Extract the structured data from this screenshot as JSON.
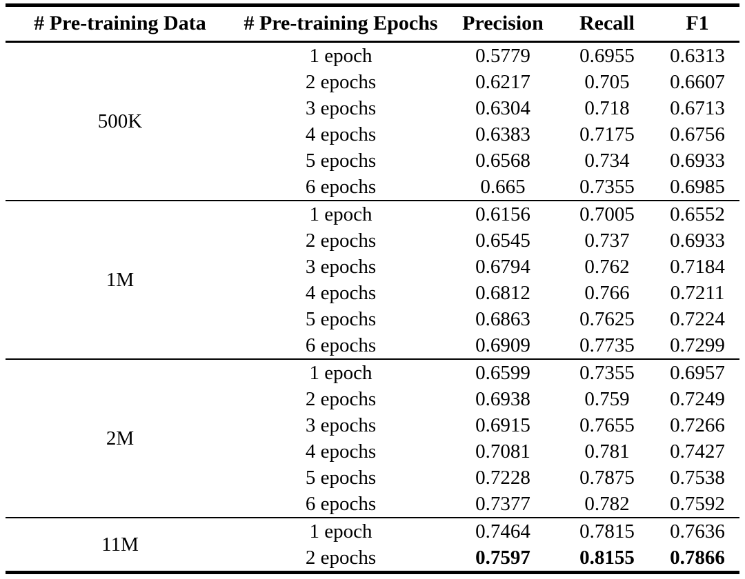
{
  "page": {
    "background": "#ffffff",
    "text_color": "#000000",
    "rule_color": "#000000"
  },
  "table": {
    "columns": [
      "# Pre-training Data",
      "# Pre-training Epochs",
      "Precision",
      "Recall",
      "F1"
    ],
    "groups": [
      {
        "data": "500K",
        "rows": [
          {
            "epochs": "1 epoch",
            "precision": "0.5779",
            "recall": "0.6955",
            "f1": "0.6313",
            "bold": false
          },
          {
            "epochs": "2 epochs",
            "precision": "0.6217",
            "recall": "0.705",
            "f1": "0.6607",
            "bold": false
          },
          {
            "epochs": "3 epochs",
            "precision": "0.6304",
            "recall": "0.718",
            "f1": "0.6713",
            "bold": false
          },
          {
            "epochs": "4 epochs",
            "precision": "0.6383",
            "recall": "0.7175",
            "f1": "0.6756",
            "bold": false
          },
          {
            "epochs": "5 epochs",
            "precision": "0.6568",
            "recall": "0.734",
            "f1": "0.6933",
            "bold": false
          },
          {
            "epochs": "6 epochs",
            "precision": "0.665",
            "recall": "0.7355",
            "f1": "0.6985",
            "bold": false
          }
        ]
      },
      {
        "data": "1M",
        "rows": [
          {
            "epochs": "1 epoch",
            "precision": "0.6156",
            "recall": "0.7005",
            "f1": "0.6552",
            "bold": false
          },
          {
            "epochs": "2 epochs",
            "precision": "0.6545",
            "recall": "0.737",
            "f1": "0.6933",
            "bold": false
          },
          {
            "epochs": "3 epochs",
            "precision": "0.6794",
            "recall": "0.762",
            "f1": "0.7184",
            "bold": false
          },
          {
            "epochs": "4 epochs",
            "precision": "0.6812",
            "recall": "0.766",
            "f1": "0.7211",
            "bold": false
          },
          {
            "epochs": "5 epochs",
            "precision": "0.6863",
            "recall": "0.7625",
            "f1": "0.7224",
            "bold": false
          },
          {
            "epochs": "6 epochs",
            "precision": "0.6909",
            "recall": "0.7735",
            "f1": "0.7299",
            "bold": false
          }
        ]
      },
      {
        "data": "2M",
        "rows": [
          {
            "epochs": "1 epoch",
            "precision": "0.6599",
            "recall": "0.7355",
            "f1": "0.6957",
            "bold": false
          },
          {
            "epochs": "2 epochs",
            "precision": "0.6938",
            "recall": "0.759",
            "f1": "0.7249",
            "bold": false
          },
          {
            "epochs": "3 epochs",
            "precision": "0.6915",
            "recall": "0.7655",
            "f1": "0.7266",
            "bold": false
          },
          {
            "epochs": "4 epochs",
            "precision": "0.7081",
            "recall": "0.781",
            "f1": "0.7427",
            "bold": false
          },
          {
            "epochs": "5 epochs",
            "precision": "0.7228",
            "recall": "0.7875",
            "f1": "0.7538",
            "bold": false
          },
          {
            "epochs": "6 epochs",
            "precision": "0.7377",
            "recall": "0.782",
            "f1": "0.7592",
            "bold": false
          }
        ]
      },
      {
        "data": "11M",
        "rows": [
          {
            "epochs": "1 epoch",
            "precision": "0.7464",
            "recall": "0.7815",
            "f1": "0.7636",
            "bold": false
          },
          {
            "epochs": "2 epochs",
            "precision": "0.7597",
            "recall": "0.8155",
            "f1": "0.7866",
            "bold": true
          }
        ]
      }
    ]
  }
}
